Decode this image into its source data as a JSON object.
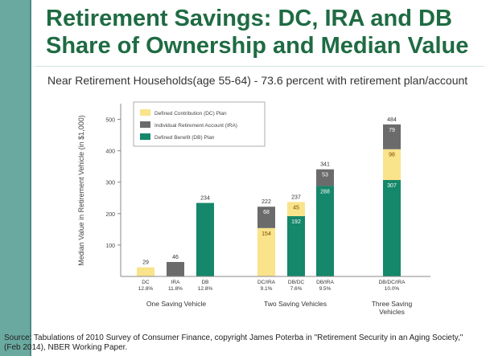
{
  "page": {
    "title_line1": "Retirement Savings: DC, IRA and DB",
    "title_line2": "Share of Ownership and Median Value",
    "subtitle": "Near Retirement Households(age 55-64) - 73.6 percent with retirement plan/account",
    "source_line1": "Source: Tabulations of 2010 Survey of Consumer Finance, copyright James Poterba in \"Retirement Security in an Aging Society,\"",
    "source_line2": "(Feb 2014), NBER Working Paper."
  },
  "chart_data": {
    "type": "bar",
    "stacked": true,
    "ylabel": "Median Value in Retirement Vehicle (in $1,000)",
    "ylim": [
      0,
      550
    ],
    "yticks": [
      100,
      200,
      300,
      400,
      500
    ],
    "legend_position": "top-left",
    "series": [
      {
        "key": "dc",
        "name": "Defined Contribution (DC) Plan",
        "color": "#f9e38b"
      },
      {
        "key": "ira",
        "name": "Individual Retirement Account (IRA)",
        "color": "#6b6b6b"
      },
      {
        "key": "db",
        "name": "Defined Benefit (DB) Plan",
        "color": "#15876a"
      }
    ],
    "groups": [
      {
        "label": "One Saving Vehicle",
        "label2": ""
      },
      {
        "label": "Two Saving Vehicles",
        "label2": ""
      },
      {
        "label": "Three Saving",
        "label2": "Vehicles"
      }
    ],
    "bars": [
      {
        "group": 0,
        "category": "DC",
        "share": "12.8%",
        "total": "29",
        "segments": [
          {
            "series": "dc",
            "value": 29
          }
        ]
      },
      {
        "group": 0,
        "category": "IRA",
        "share": "11.8%",
        "total": "46",
        "segments": [
          {
            "series": "ira",
            "value": 46
          }
        ]
      },
      {
        "group": 0,
        "category": "DB",
        "share": "12.8%",
        "total": "234",
        "segments": [
          {
            "series": "db",
            "value": 234
          }
        ]
      },
      {
        "group": 1,
        "category": "DC/IRA",
        "share": "9.1%",
        "total": "222",
        "segments": [
          {
            "series": "dc",
            "value": 154,
            "label": "154"
          },
          {
            "series": "ira",
            "value": 68,
            "label": "68"
          }
        ]
      },
      {
        "group": 1,
        "category": "DB/DC",
        "share": "7.6%",
        "total": "237",
        "segments": [
          {
            "series": "db",
            "value": 192,
            "label": "192"
          },
          {
            "series": "dc",
            "value": 45,
            "label": "45"
          }
        ]
      },
      {
        "group": 1,
        "category": "DB/IRA",
        "share": "9.5%",
        "total": "341",
        "segments": [
          {
            "series": "db",
            "value": 288,
            "label": "288"
          },
          {
            "series": "ira",
            "value": 53,
            "label": "53"
          }
        ]
      },
      {
        "group": 2,
        "category": "DB/DC/IRA",
        "share": "10.0%",
        "total": "484",
        "segments": [
          {
            "series": "db",
            "value": 307,
            "label": "307"
          },
          {
            "series": "dc",
            "value": 98,
            "label": "98"
          },
          {
            "series": "ira",
            "value": 79,
            "label": "79"
          }
        ]
      }
    ]
  }
}
